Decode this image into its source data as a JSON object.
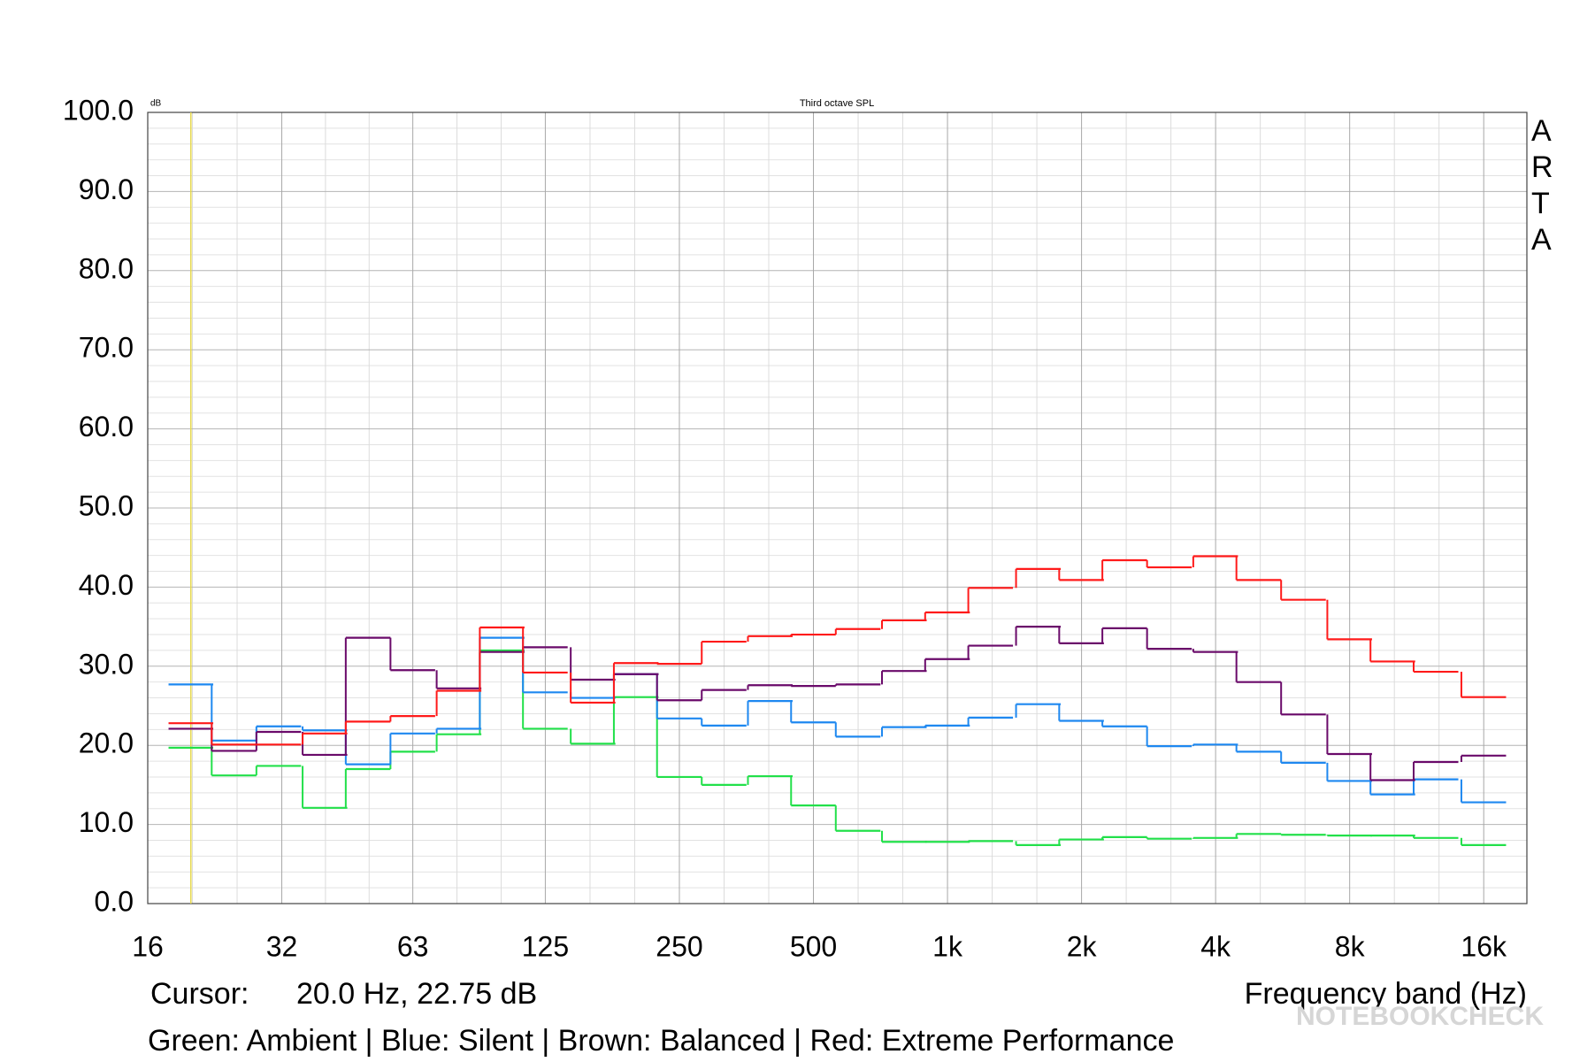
{
  "chart_data": {
    "type": "step",
    "title": "Third octave SPL",
    "y_unit": "dB",
    "brand": "ARTA",
    "x_label": "Frequency band (Hz)",
    "cursor_label": "Cursor:",
    "cursor_value": "20.0 Hz, 22.75 dB",
    "cursor_x": 20,
    "cursor_color": "#e6d84a",
    "caption": "Green: Ambient | Blue: Silent | Brown: Balanced | Red: Extreme Performance",
    "watermark": "NOTEBOOKCHECK",
    "log_x": true,
    "grid": true,
    "x": [
      20,
      25,
      31.5,
      40,
      50,
      63,
      80,
      100,
      125,
      160,
      200,
      250,
      315,
      400,
      500,
      630,
      800,
      1000,
      1250,
      1600,
      2000,
      2500,
      3150,
      4000,
      5000,
      6300,
      8000,
      10000,
      12500,
      16000
    ],
    "xlim": [
      16,
      20000
    ],
    "xticks": [
      16,
      32,
      63,
      125,
      250,
      500,
      {
        "value": 1000,
        "label": "1k"
      },
      {
        "value": 2000,
        "label": "2k"
      },
      {
        "value": 4000,
        "label": "4k"
      },
      {
        "value": 8000,
        "label": "8k"
      },
      {
        "value": 16000,
        "label": "16k"
      }
    ],
    "ylim": [
      0,
      100
    ],
    "yticks": [
      {
        "value": 0,
        "label": "0.0"
      },
      {
        "value": 10,
        "label": "10.0"
      },
      {
        "value": 20,
        "label": "20.0"
      },
      {
        "value": 30,
        "label": "30.0"
      },
      {
        "value": 40,
        "label": "40.0"
      },
      {
        "value": 50,
        "label": "50.0"
      },
      {
        "value": 60,
        "label": "60.0"
      },
      {
        "value": 70,
        "label": "70.0"
      },
      {
        "value": 80,
        "label": "80.0"
      },
      {
        "value": 90,
        "label": "90.0"
      },
      {
        "value": 100,
        "label": "100.0"
      }
    ],
    "series": [
      {
        "color": "#22e04a",
        "values": [
          19.7,
          16.2,
          17.4,
          12.1,
          17.0,
          19.2,
          21.4,
          32.0,
          22.1,
          20.2,
          26.1,
          16.0,
          15.0,
          16.1,
          12.4,
          9.2,
          7.8,
          7.8,
          7.9,
          7.4,
          8.1,
          8.4,
          8.2,
          8.3,
          8.8,
          8.7,
          8.6,
          8.6,
          8.3,
          7.4
        ]
      },
      {
        "color": "#1e88f0",
        "values": [
          27.7,
          20.6,
          22.4,
          21.9,
          17.6,
          21.5,
          22.1,
          33.6,
          26.7,
          26.0,
          29.0,
          23.4,
          22.5,
          25.6,
          22.9,
          21.1,
          22.3,
          22.5,
          23.5,
          25.2,
          23.1,
          22.4,
          19.9,
          20.1,
          19.2,
          17.8,
          15.5,
          13.8,
          15.7,
          12.8
        ]
      },
      {
        "color": "#6a0a6a",
        "values": [
          22.1,
          19.3,
          21.7,
          18.8,
          33.6,
          29.5,
          27.2,
          31.8,
          32.4,
          28.3,
          29.0,
          25.7,
          27.0,
          27.6,
          27.5,
          27.7,
          29.4,
          30.9,
          32.6,
          35.0,
          32.9,
          34.8,
          32.2,
          31.8,
          28.0,
          23.9,
          18.9,
          15.6,
          17.9,
          18.7
        ]
      },
      {
        "color": "#ff1a1a",
        "values": [
          22.8,
          20.1,
          20.1,
          21.5,
          23.0,
          23.7,
          26.9,
          34.9,
          29.2,
          25.4,
          30.4,
          30.3,
          33.1,
          33.8,
          34.0,
          34.7,
          35.8,
          36.8,
          39.9,
          42.3,
          40.9,
          43.4,
          42.5,
          43.9,
          40.9,
          38.4,
          33.4,
          30.6,
          29.3,
          26.1
        ]
      }
    ]
  }
}
